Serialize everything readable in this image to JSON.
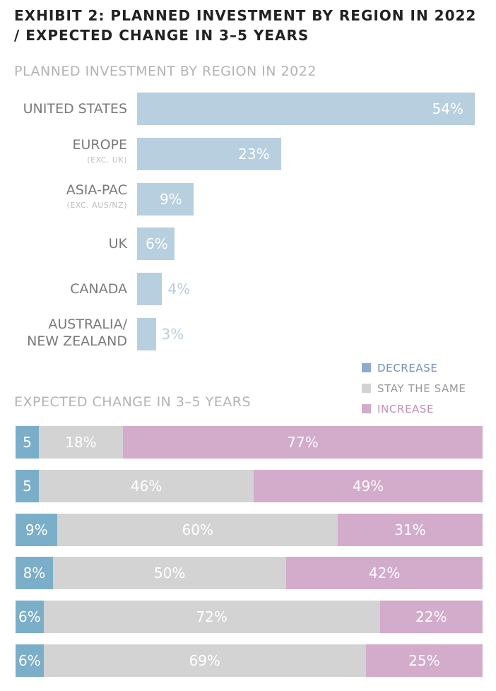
{
  "title": "EXHIBIT 2: PLANNED INVESTMENT BY REGION IN 2022 / EXPECTED CHANGE IN 3–5 YEARS",
  "colors": {
    "bar": "#b8cfe0",
    "decrease": "#7aaec9",
    "stay": "#d3d3d3",
    "increase": "#d3abcb",
    "legend_decrease": "#8fa9d1",
    "legend_decrease_text": "#6f8fbf",
    "legend_increase_text": "#c48eba",
    "legend_stay_text": "#9a9a9a"
  },
  "chart_data": [
    {
      "type": "bar",
      "orientation": "horizontal",
      "title": "PLANNED INVESTMENT BY REGION IN 2022",
      "categories": [
        {
          "label": "UNITED STATES",
          "sub": ""
        },
        {
          "label": "EUROPE",
          "sub": "(EXC. UK)"
        },
        {
          "label": "ASIA-PAC",
          "sub": "(EXC. AUS/NZ)"
        },
        {
          "label": "UK",
          "sub": ""
        },
        {
          "label": "CANADA",
          "sub": ""
        },
        {
          "label": "AUSTRALIA/\nNEW ZEALAND",
          "sub": ""
        }
      ],
      "values": [
        54,
        23,
        9,
        6,
        4,
        3
      ],
      "value_labels": [
        "54%",
        "23%",
        "9%",
        "6%",
        "4%",
        "3%"
      ],
      "xlim": [
        0,
        54
      ],
      "grid": false
    },
    {
      "type": "bar",
      "orientation": "horizontal",
      "stacked": true,
      "title": "EXPECTED CHANGE IN 3–5 YEARS",
      "legend": {
        "placement": "top-right",
        "entries": [
          "DECREASE",
          "STAY THE SAME",
          "INCREASE"
        ]
      },
      "series": [
        {
          "name": "DECREASE",
          "values": [
            5,
            5,
            9,
            8,
            6,
            6
          ],
          "labels": [
            "5",
            "5",
            "9%",
            "8%",
            "6%",
            "6%"
          ]
        },
        {
          "name": "STAY THE SAME",
          "values": [
            18,
            46,
            60,
            50,
            72,
            69
          ],
          "labels": [
            "18%",
            "46%",
            "60%",
            "50%",
            "72%",
            "69%"
          ]
        },
        {
          "name": "INCREASE",
          "values": [
            77,
            49,
            31,
            42,
            22,
            25
          ],
          "labels": [
            "77%",
            "49%",
            "31%",
            "42%",
            "22%",
            "25%"
          ]
        }
      ],
      "xlim": [
        0,
        100
      ],
      "grid": false
    }
  ]
}
